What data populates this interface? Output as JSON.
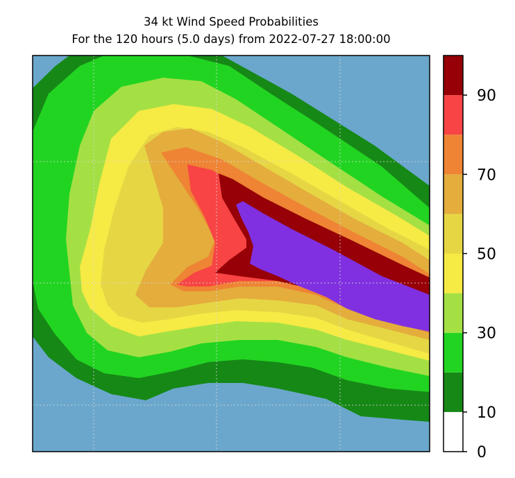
{
  "chart_data": {
    "type": "contourf",
    "title": "34 kt Wind Speed Probabilities",
    "subtitle": "For the 120 hours (5.0 days) from 2022-07-27 18:00:00",
    "xlabel": "",
    "ylabel": "",
    "background": "ocean",
    "grid": true,
    "colorbar": {
      "position": "right",
      "range": [
        0,
        100
      ],
      "ticks": [
        0,
        10,
        30,
        50,
        70,
        90
      ],
      "tick_labels": [
        "0",
        "10",
        "30",
        "50",
        "70",
        "90"
      ],
      "levels": [
        {
          "range": [
            0,
            10
          ],
          "color": "#ffffff"
        },
        {
          "range": [
            10,
            20
          ],
          "color": "#168816"
        },
        {
          "range": [
            20,
            30
          ],
          "color": "#22d422"
        },
        {
          "range": [
            30,
            40
          ],
          "color": "#a4e044"
        },
        {
          "range": [
            40,
            50
          ],
          "color": "#f6ea44"
        },
        {
          "range": [
            50,
            60
          ],
          "color": "#e6d644"
        },
        {
          "range": [
            60,
            70
          ],
          "color": "#e4ad3c"
        },
        {
          "range": [
            70,
            80
          ],
          "color": "#ee8434"
        },
        {
          "range": [
            80,
            90
          ],
          "color": "#f84444"
        },
        {
          "range": [
            90,
            100
          ],
          "color": "#960006"
        },
        {
          "range": [
            100,
            110
          ],
          "color": "#8030e0"
        }
      ]
    },
    "filled_regions": [
      {
        "level_min": 10,
        "color": "#168816"
      },
      {
        "level_min": 20,
        "color": "#22d422"
      },
      {
        "level_min": 30,
        "color": "#a4e044"
      },
      {
        "level_min": 40,
        "color": "#f6ea44"
      },
      {
        "level_min": 50,
        "color": "#e6d644"
      },
      {
        "level_min": 60,
        "color": "#e4ad3c"
      },
      {
        "level_min": 70,
        "color": "#ee8434"
      },
      {
        "level_min": 80,
        "color": "#f84444"
      },
      {
        "level_min": 90,
        "color": "#960006"
      },
      {
        "level_min": 100,
        "color": "#8030e0"
      }
    ],
    "ocean_color": "#6ba7cc"
  }
}
